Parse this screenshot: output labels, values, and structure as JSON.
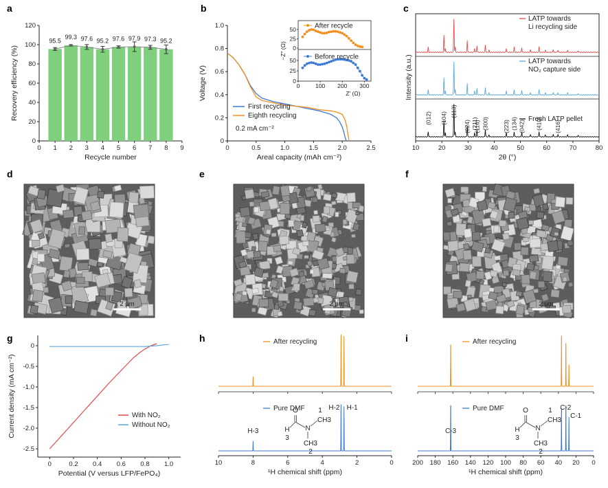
{
  "panels": {
    "a": "a",
    "b": "b",
    "c": "c",
    "d": "d",
    "e": "e",
    "f": "f",
    "g": "g",
    "h": "h",
    "i": "i"
  },
  "colors": {
    "green": "#7fcf7c",
    "blue": "#3c7ad6",
    "orange": "#f28f1e",
    "red": "#e34b4b",
    "lightblue": "#5aa8df",
    "black": "#111111",
    "gray": "#888888"
  },
  "chart_data": [
    {
      "id": "a",
      "type": "bar",
      "xlabel": "Recycle number",
      "ylabel": "Recovery efficiency (%)",
      "xlim": [
        0,
        9
      ],
      "ylim": [
        0,
        120
      ],
      "xticks": [
        "0",
        "1",
        "2",
        "3",
        "4",
        "5",
        "6",
        "7",
        "8",
        "9"
      ],
      "yticks": [
        "0",
        "20",
        "40",
        "60",
        "80",
        "100",
        "120"
      ],
      "categories": [
        1,
        2,
        3,
        4,
        5,
        6,
        7,
        8
      ],
      "values": [
        95.5,
        99.3,
        97.6,
        95.2,
        97.6,
        97.9,
        97.3,
        95.2
      ],
      "errors": [
        1.5,
        0.8,
        2.5,
        3.0,
        1.2,
        5.0,
        2.0,
        4.5
      ],
      "labels": [
        "95.5",
        "99.3",
        "97.6",
        "95.2",
        "97.6",
        "97.9",
        "97.3",
        "95.2"
      ]
    },
    {
      "id": "b",
      "type": "line",
      "xlabel": "Areal capacity (mAh cm⁻²)",
      "ylabel": "Voltage (V)",
      "xlim": [
        0,
        2.5
      ],
      "ylim": [
        0,
        1.0
      ],
      "xticks": [
        "0",
        "0.5",
        "1.0",
        "1.5",
        "2.0",
        "2.5"
      ],
      "yticks": [
        "0",
        "0.2",
        "0.4",
        "0.6",
        "0.8",
        "1.0"
      ],
      "annotation": "0.2 mA cm⁻²",
      "series": [
        {
          "name": "First recycling",
          "color": "blue",
          "x": [
            0,
            0.1,
            0.2,
            0.3,
            0.4,
            0.5,
            0.6,
            0.8,
            1.0,
            1.2,
            1.4,
            1.6,
            1.8,
            1.9,
            1.95,
            2.0,
            2.03,
            2.05,
            2.07
          ],
          "y": [
            0.76,
            0.72,
            0.66,
            0.58,
            0.48,
            0.41,
            0.37,
            0.34,
            0.32,
            0.3,
            0.28,
            0.26,
            0.23,
            0.2,
            0.17,
            0.12,
            0.07,
            0.03,
            0.0
          ]
        },
        {
          "name": "Eighth recycling",
          "color": "orange",
          "x": [
            0,
            0.1,
            0.2,
            0.3,
            0.4,
            0.5,
            0.6,
            0.8,
            1.0,
            1.2,
            1.4,
            1.6,
            1.8,
            1.9,
            2.0,
            2.05,
            2.08,
            2.1,
            2.12
          ],
          "y": [
            0.76,
            0.72,
            0.66,
            0.58,
            0.47,
            0.38,
            0.35,
            0.33,
            0.31,
            0.3,
            0.29,
            0.27,
            0.26,
            0.25,
            0.23,
            0.18,
            0.12,
            0.05,
            0.0
          ]
        }
      ],
      "inset": {
        "xlabel": "Z′ (Ω)",
        "ylabel": "−Z″ (Ω)",
        "xlim": [
          0,
          330
        ],
        "ylim": [
          0,
          100
        ],
        "xticks": [
          "0",
          "100",
          "200",
          "300"
        ],
        "yticks": [
          "0",
          "25",
          "50"
        ],
        "series": [
          {
            "name": "After recycle",
            "color": "orange",
            "x": [
              20,
              30,
              40,
              50,
              60,
              70,
              80,
              90,
              100,
              110,
              120,
              130,
              140,
              150,
              160,
              170,
              180,
              190,
              200,
              210,
              220,
              230,
              240,
              250,
              260,
              270,
              280,
              290
            ],
            "y": [
              30,
              38,
              44,
              48,
              50,
              49,
              46,
              44,
              42,
              40,
              40,
              41,
              43,
              44,
              45,
              45,
              44,
              42,
              40,
              36,
              32,
              26,
              20,
              14,
              9,
              6,
              4,
              3
            ]
          },
          {
            "name": "Before recycle",
            "color": "blue",
            "x": [
              20,
              30,
              40,
              50,
              60,
              70,
              80,
              90,
              100,
              110,
              120,
              130,
              140,
              150,
              160,
              170,
              180,
              190,
              200,
              210,
              220,
              230,
              240,
              250,
              260,
              270,
              280,
              290,
              300,
              310
            ],
            "y": [
              32,
              38,
              42,
              44,
              45,
              44,
              42,
              40,
              40,
              41,
              42,
              44,
              46,
              48,
              50,
              52,
              53,
              53,
              53,
              52,
              51,
              50,
              48,
              44,
              40,
              32,
              24,
              14,
              7,
              4
            ]
          }
        ]
      }
    },
    {
      "id": "c",
      "type": "line",
      "xlabel": "2θ (°)",
      "ylabel": "Intensity (a.u.)",
      "xlim": [
        10,
        80
      ],
      "xticks": [
        "10",
        "20",
        "30",
        "40",
        "50",
        "60",
        "70",
        "80"
      ],
      "peaks": [
        [
          14.8,
          0.15
        ],
        [
          20.8,
          0.5
        ],
        [
          21.3,
          0.12
        ],
        [
          24.6,
          1.0
        ],
        [
          25.1,
          0.15
        ],
        [
          29.7,
          0.35
        ],
        [
          32.5,
          0.12
        ],
        [
          33.4,
          0.2
        ],
        [
          36.6,
          0.22
        ],
        [
          38.0,
          0.06
        ],
        [
          44.6,
          0.12
        ],
        [
          47.6,
          0.15
        ],
        [
          50.5,
          0.14
        ],
        [
          53.8,
          0.08
        ],
        [
          57.1,
          0.16
        ],
        [
          59.5,
          0.06
        ],
        [
          62.5,
          0.08
        ],
        [
          64.3,
          0.07
        ],
        [
          68.0,
          0.06
        ],
        [
          72.0,
          0.05
        ]
      ],
      "series": [
        {
          "name": "LATP towards Li recycling side",
          "color": "red",
          "offset": 2.0
        },
        {
          "name": "LATP towards NO₂ capture side",
          "color": "lightblue",
          "offset": 1.0
        },
        {
          "name": "Fresh LATP pellet",
          "color": "black",
          "offset": 0.0
        }
      ],
      "legend_lines": [
        [
          "LATP towards",
          "Li recycling side"
        ],
        [
          "LATP towards",
          "NO₂ capture side"
        ],
        [
          "Fresh LATP pellet"
        ]
      ],
      "hkl": [
        {
          "x": 14.8,
          "label": "(012)"
        },
        {
          "x": 20.8,
          "label": "(104)"
        },
        {
          "x": 24.6,
          "label": "(113)"
        },
        {
          "x": 29.7,
          "label": "(024)"
        },
        {
          "x": 32.5,
          "label": "(211)"
        },
        {
          "x": 33.4,
          "label": "(116)"
        },
        {
          "x": 36.6,
          "label": "(300)"
        },
        {
          "x": 44.6,
          "label": "(223)"
        },
        {
          "x": 47.6,
          "label": "(134)"
        },
        {
          "x": 50.5,
          "label": "(042)"
        },
        {
          "x": 57.1,
          "label": "(410)"
        },
        {
          "x": 64.3,
          "label": "(416)"
        }
      ]
    },
    {
      "id": "g",
      "type": "line",
      "xlabel": "Potential (V versus LFP/FePO₄)",
      "ylabel": "Current density (mA cm⁻²)",
      "xlim": [
        -0.1,
        1.1
      ],
      "ylim": [
        -2.7,
        0.25
      ],
      "xticks": [
        "0",
        "0.2",
        "0.4",
        "0.6",
        "0.8",
        "1.0"
      ],
      "yticks": [
        "0",
        "-0.5",
        "-1.0",
        "-1.5",
        "-2.0",
        "-2.5"
      ],
      "series": [
        {
          "name": "With NO₂",
          "color": "red",
          "x": [
            0,
            0.1,
            0.2,
            0.3,
            0.4,
            0.5,
            0.6,
            0.7,
            0.75,
            0.8,
            0.85,
            0.9
          ],
          "y": [
            -2.5,
            -2.18,
            -1.86,
            -1.54,
            -1.22,
            -0.9,
            -0.6,
            -0.3,
            -0.18,
            -0.08,
            0.0,
            0.05
          ]
        },
        {
          "name": "Without NO₂",
          "color": "lightblue",
          "x": [
            0,
            0.2,
            0.4,
            0.6,
            0.8,
            0.9,
            0.95,
            1.0
          ],
          "y": [
            -0.02,
            -0.02,
            -0.02,
            -0.02,
            -0.02,
            0.0,
            0.02,
            0.03
          ]
        }
      ]
    },
    {
      "id": "h",
      "type": "line",
      "xlabel": "¹H chemical shift (ppm)",
      "xlim": [
        10,
        0
      ],
      "xticks": [
        "10",
        "8",
        "6",
        "4",
        "2",
        "0"
      ],
      "series": [
        {
          "name": "After recycling",
          "color": "orange",
          "peaks": [
            [
              8.0,
              0.18
            ],
            [
              2.92,
              1.0
            ],
            [
              2.75,
              0.93
            ]
          ]
        },
        {
          "name": "Pure DMF",
          "color": "blue",
          "peaks": [
            [
              8.0,
              0.2
            ],
            [
              2.92,
              1.0
            ],
            [
              2.75,
              0.92
            ]
          ]
        }
      ],
      "peak_labels": [
        {
          "x": 8.0,
          "label": "H-3"
        },
        {
          "x": 2.92,
          "label": "H-2"
        },
        {
          "x": 2.75,
          "label": "H-1"
        }
      ],
      "molecule": {
        "O": "O",
        "H": "H",
        "N": "N",
        "CH3": "CH",
        "sub3": "3",
        "n1": "1",
        "n2": "2",
        "n3": "3"
      }
    },
    {
      "id": "i",
      "type": "line",
      "xlabel": "¹H chemical shift (ppm)",
      "xlim": [
        200,
        0
      ],
      "xticks": [
        "200",
        "180",
        "160",
        "140",
        "120",
        "100",
        "80",
        "60",
        "40",
        "20",
        "0"
      ],
      "series": [
        {
          "name": "After recycling",
          "color": "orange",
          "peaks": [
            [
              162.5,
              0.82
            ],
            [
              36.5,
              1.0
            ],
            [
              31.5,
              0.85
            ],
            [
              28.0,
              0.4
            ]
          ]
        },
        {
          "name": "Pure DMF",
          "color": "blue",
          "peaks": [
            [
              162.5,
              1.0
            ],
            [
              36.5,
              0.93
            ],
            [
              31.5,
              1.0
            ],
            [
              28.0,
              0.7
            ]
          ]
        }
      ],
      "peak_labels": [
        {
          "x": 162.5,
          "label": "C-3"
        },
        {
          "x": 36.5,
          "label": "C-2"
        },
        {
          "x": 28.0,
          "label": "C-1"
        }
      ],
      "molecule": {
        "O": "O",
        "H": "H",
        "N": "N",
        "CH3": "CH",
        "sub3": "3",
        "n1": "1",
        "n2": "2",
        "n3": "3"
      }
    }
  ],
  "sem_images": [
    {
      "id": "d",
      "scale": "2 μm"
    },
    {
      "id": "e",
      "scale": "2 μm"
    },
    {
      "id": "f",
      "scale": "2 μm"
    }
  ]
}
